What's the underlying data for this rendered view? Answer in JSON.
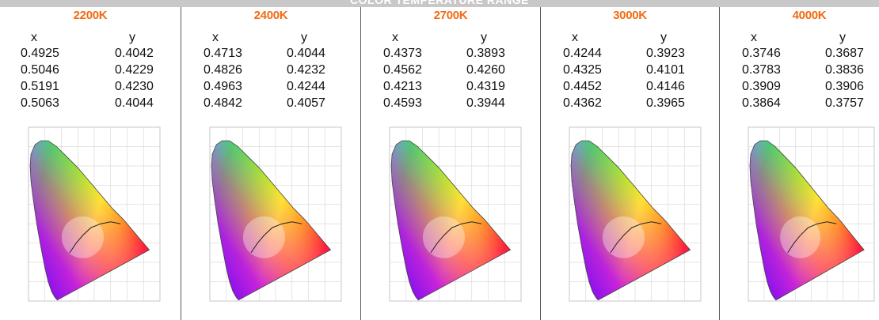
{
  "page": {
    "title": "COLOR TEMPERATURE RANGE"
  },
  "columns": [
    {
      "temp": "2200K",
      "x_header": "x",
      "y_header": "y",
      "rows": [
        {
          "x": "0.4925",
          "y": "0.4042"
        },
        {
          "x": "0.5046",
          "y": "0.4229"
        },
        {
          "x": "0.5191",
          "y": "0.4230"
        },
        {
          "x": "0.5063",
          "y": "0.4044"
        }
      ]
    },
    {
      "temp": "2400K",
      "x_header": "x",
      "y_header": "y",
      "rows": [
        {
          "x": "0.4713",
          "y": "0.4044"
        },
        {
          "x": "0.4826",
          "y": "0.4232"
        },
        {
          "x": "0.4963",
          "y": "0.4244"
        },
        {
          "x": "0.4842",
          "y": "0.4057"
        }
      ]
    },
    {
      "temp": "2700K",
      "x_header": "x",
      "y_header": "y",
      "rows": [
        {
          "x": "0.4373",
          "y": "0.3893"
        },
        {
          "x": "0.4562",
          "y": "0.4260"
        },
        {
          "x": "0.4213",
          "y": "0.4319"
        },
        {
          "x": "0.4593",
          "y": "0.3944"
        }
      ]
    },
    {
      "temp": "3000K",
      "x_header": "x",
      "y_header": "y",
      "rows": [
        {
          "x": "0.4244",
          "y": "0.3923"
        },
        {
          "x": "0.4325",
          "y": "0.4101"
        },
        {
          "x": "0.4452",
          "y": "0.4146"
        },
        {
          "x": "0.4362",
          "y": "0.3965"
        }
      ]
    },
    {
      "temp": "4000K",
      "x_header": "x",
      "y_header": "y",
      "rows": [
        {
          "x": "0.3746",
          "y": "0.3687"
        },
        {
          "x": "0.3783",
          "y": "0.3836"
        },
        {
          "x": "0.3909",
          "y": "0.3906"
        },
        {
          "x": "0.3864",
          "y": "0.3757"
        }
      ]
    }
  ],
  "colors": {
    "temp_header": "#f26a10",
    "top_bar": "#c8c8c8",
    "divider": "#5a5a5a"
  }
}
